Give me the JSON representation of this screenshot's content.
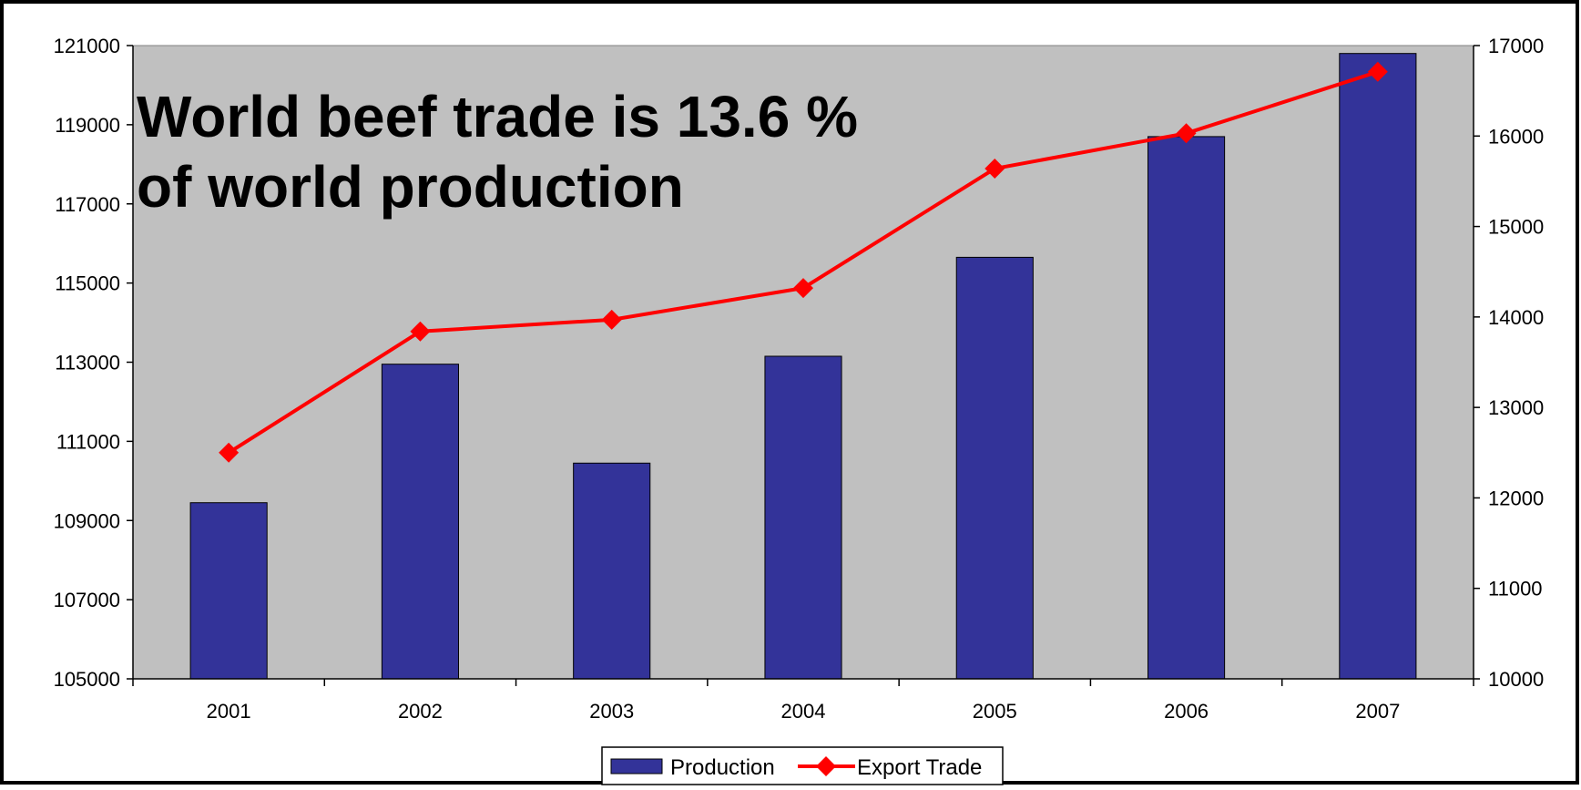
{
  "chart_data": {
    "type": "bar",
    "title_lines": [
      "World beef trade is 13.6 %",
      "of world production"
    ],
    "categories": [
      "2001",
      "2002",
      "2003",
      "2004",
      "2005",
      "2006",
      "2007"
    ],
    "series": [
      {
        "name": "Production",
        "type": "bar",
        "axis": "left",
        "values": [
          109450,
          112950,
          110450,
          113150,
          115650,
          118700,
          120800
        ]
      },
      {
        "name": "Export Trade",
        "type": "line",
        "axis": "right",
        "values": [
          12500,
          13840,
          13970,
          14320,
          15640,
          16030,
          16710
        ]
      }
    ],
    "y_left": {
      "min": 105000,
      "max": 121000,
      "ticks": [
        "105000",
        "107000",
        "109000",
        "111000",
        "113000",
        "115000",
        "117000",
        "119000",
        "121000"
      ]
    },
    "y_right": {
      "min": 10000,
      "max": 17000,
      "ticks": [
        "10000",
        "11000",
        "12000",
        "13000",
        "14000",
        "15000",
        "16000",
        "17000"
      ]
    },
    "legend_position": "bottom",
    "colors": {
      "plot_bg": "#c0c0c0",
      "bar_fill": "#333399",
      "line": "#ff0000"
    }
  }
}
